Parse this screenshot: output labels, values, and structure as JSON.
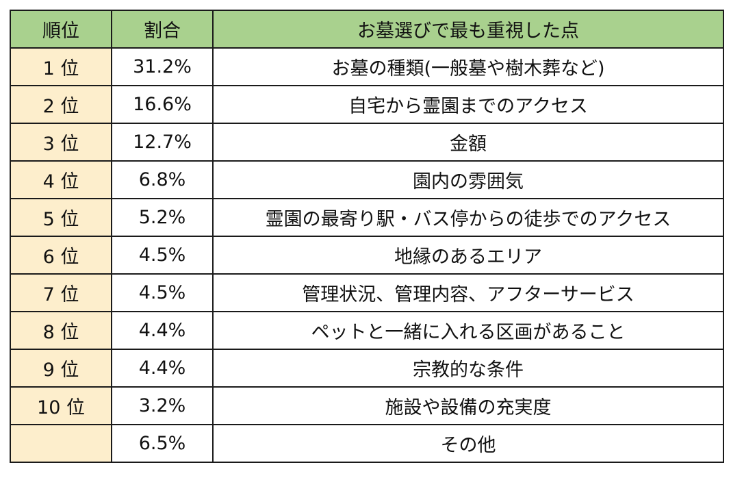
{
  "table": {
    "headers": {
      "rank": "順位",
      "rate": "割合",
      "reason": "お墓選びで最も重視した点"
    },
    "rows": [
      {
        "rank": "1 位",
        "rate": "31.2%",
        "reason": "お墓の種類(一般墓や樹木葬など)"
      },
      {
        "rank": "2 位",
        "rate": "16.6%",
        "reason": "自宅から霊園までのアクセス"
      },
      {
        "rank": "3 位",
        "rate": "12.7%",
        "reason": "金額"
      },
      {
        "rank": "4 位",
        "rate": "6.8%",
        "reason": "園内の雰囲気"
      },
      {
        "rank": "5 位",
        "rate": "5.2%",
        "reason": "霊園の最寄り駅・バス停からの徒歩でのアクセス"
      },
      {
        "rank": "6 位",
        "rate": "4.5%",
        "reason": "地縁のあるエリア"
      },
      {
        "rank": "7 位",
        "rate": "4.5%",
        "reason": "管理状況、管理内容、アフターサービス"
      },
      {
        "rank": "8 位",
        "rate": "4.4%",
        "reason": "ペットと一緒に入れる区画があること"
      },
      {
        "rank": "9 位",
        "rate": "4.4%",
        "reason": "宗教的な条件"
      },
      {
        "rank": "10 位",
        "rate": "3.2%",
        "reason": "施設や設備の充実度"
      },
      {
        "rank": "",
        "rate": "6.5%",
        "reason": "その他"
      }
    ]
  },
  "colors": {
    "header_background": "#a9d18e",
    "rank_background": "#fdeecc",
    "border": "#1a1a1a"
  }
}
